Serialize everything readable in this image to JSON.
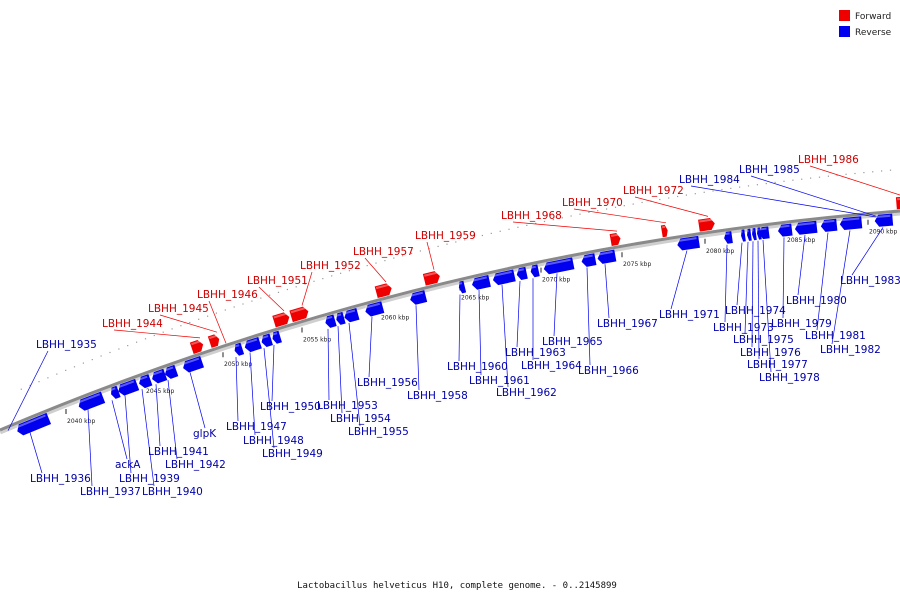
{
  "legend": {
    "forward": {
      "label": "Forward",
      "color": "#ee0000"
    },
    "reverse": {
      "label": "Reverse",
      "color": "#0000ee"
    }
  },
  "caption": "Lactobacillus helveticus H10, complete genome. - 0..2145899",
  "ticks": [
    "2040 kbp",
    "2045 kbp",
    "2050 kbp",
    "2055 kbp",
    "2060 kbp",
    "2065 kbp",
    "2070 kbp",
    "2075 kbp",
    "2080 kbp",
    "2085 kbp",
    "2090 kbp"
  ],
  "genes": [
    {
      "label": "LBHH_1935",
      "strand": "reverse"
    },
    {
      "label": "LBHH_1936",
      "strand": "reverse"
    },
    {
      "label": "LBHH_1937",
      "strand": "reverse"
    },
    {
      "label": "ackA",
      "strand": "reverse"
    },
    {
      "label": "LBHH_1939",
      "strand": "reverse"
    },
    {
      "label": "LBHH_1940",
      "strand": "reverse"
    },
    {
      "label": "LBHH_1941",
      "strand": "reverse"
    },
    {
      "label": "LBHH_1942",
      "strand": "reverse"
    },
    {
      "label": "glpK",
      "strand": "reverse"
    },
    {
      "label": "LBHH_1944",
      "strand": "forward"
    },
    {
      "label": "LBHH_1945",
      "strand": "forward"
    },
    {
      "label": "LBHH_1946",
      "strand": "forward"
    },
    {
      "label": "LBHH_1947",
      "strand": "reverse"
    },
    {
      "label": "LBHH_1948",
      "strand": "reverse"
    },
    {
      "label": "LBHH_1949",
      "strand": "reverse"
    },
    {
      "label": "LBHH_1950",
      "strand": "reverse"
    },
    {
      "label": "LBHH_1951",
      "strand": "forward"
    },
    {
      "label": "LBHH_1952",
      "strand": "forward"
    },
    {
      "label": "LBHH_1953",
      "strand": "reverse"
    },
    {
      "label": "LBHH_1954",
      "strand": "reverse"
    },
    {
      "label": "LBHH_1955",
      "strand": "reverse"
    },
    {
      "label": "LBHH_1956",
      "strand": "reverse"
    },
    {
      "label": "LBHH_1957",
      "strand": "forward"
    },
    {
      "label": "LBHH_1958",
      "strand": "reverse"
    },
    {
      "label": "LBHH_1959",
      "strand": "forward"
    },
    {
      "label": "LBHH_1960",
      "strand": "reverse"
    },
    {
      "label": "LBHH_1961",
      "strand": "reverse"
    },
    {
      "label": "LBHH_1962",
      "strand": "reverse"
    },
    {
      "label": "LBHH_1963",
      "strand": "reverse"
    },
    {
      "label": "LBHH_1964",
      "strand": "reverse"
    },
    {
      "label": "LBHH_1965",
      "strand": "reverse"
    },
    {
      "label": "LBHH_1966",
      "strand": "reverse"
    },
    {
      "label": "LBHH_1967",
      "strand": "reverse"
    },
    {
      "label": "LBHH_1968",
      "strand": "forward"
    },
    {
      "label": "LBHH_1970",
      "strand": "forward"
    },
    {
      "label": "LBHH_1971",
      "strand": "reverse"
    },
    {
      "label": "LBHH_1972",
      "strand": "forward"
    },
    {
      "label": "LBHH_1973",
      "strand": "reverse"
    },
    {
      "label": "LBHH_1974",
      "strand": "reverse"
    },
    {
      "label": "LBHH_1975",
      "strand": "reverse"
    },
    {
      "label": "LBHH_1976",
      "strand": "reverse"
    },
    {
      "label": "LBHH_1977",
      "strand": "reverse"
    },
    {
      "label": "LBHH_1978",
      "strand": "reverse"
    },
    {
      "label": "LBHH_1979",
      "strand": "reverse"
    },
    {
      "label": "LBHH_1980",
      "strand": "reverse"
    },
    {
      "label": "LBHH_1981",
      "strand": "reverse"
    },
    {
      "label": "LBHH_1982",
      "strand": "reverse"
    },
    {
      "label": "LBHH_1983",
      "strand": "reverse"
    },
    {
      "label": "LBHH_1984",
      "strand": "reverse"
    },
    {
      "label": "LBHH_1985",
      "strand": "reverse"
    },
    {
      "label": "LBHH_1986",
      "strand": "forward"
    }
  ]
}
